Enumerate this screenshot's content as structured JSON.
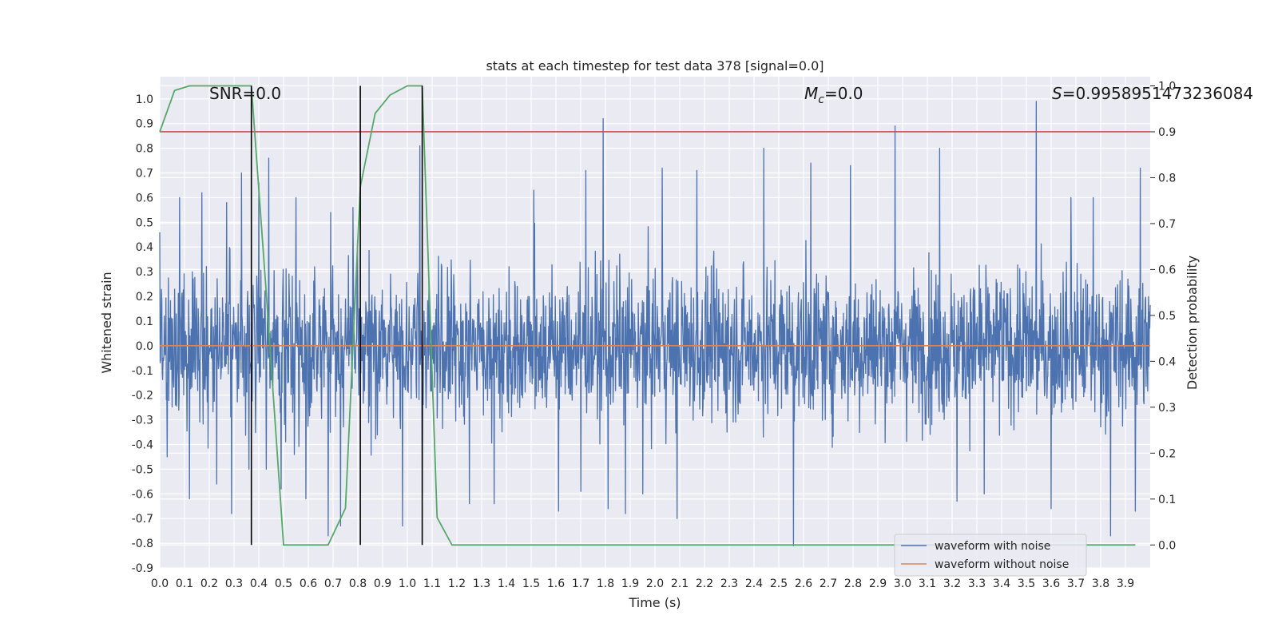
{
  "chart_data": {
    "type": "line",
    "title": "stats at each timestep for test data 378 [signal=0.0]",
    "xlabel": "Time (s)",
    "ylabel": "Whitened strain",
    "y2label": "Detection probability",
    "xlim": [
      0.0,
      4.0
    ],
    "ylim": [
      -0.9,
      1.09
    ],
    "y2lim": [
      -0.05,
      1.02
    ],
    "x_ticks": [
      0.0,
      0.1,
      0.2,
      0.3,
      0.4,
      0.5,
      0.6,
      0.7,
      0.8,
      0.9,
      1.0,
      1.1,
      1.2,
      1.3,
      1.4,
      1.5,
      1.6,
      1.7,
      1.8,
      1.9,
      2.0,
      2.1,
      2.2,
      2.3,
      2.4,
      2.5,
      2.6,
      2.7,
      2.8,
      2.9,
      3.0,
      3.1,
      3.2,
      3.3,
      3.4,
      3.5,
      3.6,
      3.7,
      3.8,
      3.9
    ],
    "y_ticks": [
      -0.9,
      -0.8,
      -0.7,
      -0.6,
      -0.5,
      -0.4,
      -0.3,
      -0.2,
      -0.1,
      0.0,
      0.1,
      0.2,
      0.3,
      0.4,
      0.5,
      0.6,
      0.7,
      0.8,
      0.9,
      1.0
    ],
    "y2_ticks": [
      0.0,
      0.1,
      0.2,
      0.3,
      0.4,
      0.5,
      0.6,
      0.7,
      0.8,
      0.9,
      1.0
    ],
    "grid": true,
    "legend_position": "bottom-right",
    "annotations": {
      "snr": "SNR=0.0",
      "mc_symbol": "M",
      "mc_sub": "c",
      "mc_value": "=0.0",
      "s_symbol": "S",
      "s_value": "=0.9958951473236084"
    },
    "threshold": 0.9,
    "vlines": [
      0.37,
      0.81,
      1.06
    ],
    "series": [
      {
        "name": "waveform with noise",
        "color": "#4c72b0",
        "description_points": [
          [
            0.0,
            0.46
          ],
          [
            0.03,
            -0.45
          ],
          [
            0.08,
            0.6
          ],
          [
            0.12,
            -0.62
          ],
          [
            0.17,
            0.62
          ],
          [
            0.23,
            -0.56
          ],
          [
            0.27,
            0.58
          ],
          [
            0.29,
            -0.68
          ],
          [
            0.33,
            0.7
          ],
          [
            0.36,
            -0.5
          ],
          [
            0.4,
            0.66
          ],
          [
            0.43,
            -0.5
          ],
          [
            0.44,
            0.76
          ],
          [
            0.49,
            -0.58
          ],
          [
            0.55,
            0.6
          ],
          [
            0.59,
            -0.62
          ],
          [
            0.68,
            -0.77
          ],
          [
            0.69,
            0.54
          ],
          [
            0.73,
            -0.73
          ],
          [
            0.78,
            0.56
          ],
          [
            0.98,
            -0.73
          ],
          [
            1.05,
            0.81
          ],
          [
            1.06,
            -0.6
          ],
          [
            1.25,
            -0.64
          ],
          [
            1.35,
            -0.64
          ],
          [
            1.41,
            0.32
          ],
          [
            1.51,
            0.63
          ],
          [
            1.61,
            -0.67
          ],
          [
            1.7,
            -0.59
          ],
          [
            1.72,
            0.71
          ],
          [
            1.79,
            0.92
          ],
          [
            1.81,
            -0.66
          ],
          [
            1.88,
            -0.68
          ],
          [
            1.95,
            -0.6
          ],
          [
            2.03,
            0.72
          ],
          [
            2.09,
            -0.7
          ],
          [
            2.17,
            0.71
          ],
          [
            2.44,
            0.8
          ],
          [
            2.56,
            -0.81
          ],
          [
            2.63,
            0.74
          ],
          [
            2.79,
            0.73
          ],
          [
            2.97,
            0.89
          ],
          [
            3.15,
            0.8
          ],
          [
            3.22,
            -0.63
          ],
          [
            3.33,
            -0.6
          ],
          [
            3.54,
            0.99
          ],
          [
            3.6,
            -0.66
          ],
          [
            3.68,
            0.6
          ],
          [
            3.77,
            0.6
          ],
          [
            3.84,
            -0.77
          ],
          [
            3.94,
            -0.67
          ],
          [
            3.96,
            0.72
          ]
        ],
        "noise_std": 0.15
      },
      {
        "name": "waveform without noise",
        "color": "#dd8452",
        "constant_value": 0.0
      },
      {
        "name": "",
        "axis": "right",
        "color": "#55a868",
        "x": [
          0.0,
          0.06,
          0.12,
          0.18,
          0.25,
          0.31,
          0.37,
          0.43,
          0.5,
          0.56,
          0.62,
          0.68,
          0.75,
          0.81,
          0.87,
          0.93,
          1.0,
          1.06,
          1.12,
          1.18,
          1.25,
          1.31,
          1.37,
          1.43,
          1.5,
          1.56,
          1.62,
          1.68,
          1.75,
          1.81,
          1.87,
          1.93,
          2.0,
          2.06,
          2.12,
          2.18,
          2.25,
          2.31,
          2.37,
          2.43,
          2.5,
          2.56,
          2.62,
          2.68,
          2.75,
          2.81,
          2.87,
          2.93,
          3.0,
          3.06,
          3.12,
          3.18,
          3.25,
          3.31,
          3.37,
          3.43,
          3.5,
          3.56,
          3.62,
          3.68,
          3.75,
          3.81,
          3.87,
          3.94
        ],
        "values": [
          0.9,
          0.99,
          1.0,
          1.0,
          1.0,
          1.0,
          1.0,
          0.55,
          0.0,
          0.0,
          0.0,
          0.0,
          0.08,
          0.78,
          0.94,
          0.98,
          1.0,
          1.0,
          0.06,
          0.0,
          0.0,
          0.0,
          0.0,
          0.0,
          0.0,
          0.0,
          0.0,
          0.0,
          0.0,
          0.0,
          0.0,
          0.0,
          0.0,
          0.0,
          0.0,
          0.0,
          0.0,
          0.0,
          0.0,
          0.0,
          0.0,
          0.0,
          0.0,
          0.0,
          0.0,
          0.0,
          0.0,
          0.0,
          0.0,
          0.0,
          0.0,
          0.0,
          0.0,
          0.0,
          0.0,
          0.0,
          0.0,
          0.0,
          0.0,
          0.0,
          0.0,
          0.0,
          0.0,
          0.0
        ]
      }
    ]
  }
}
